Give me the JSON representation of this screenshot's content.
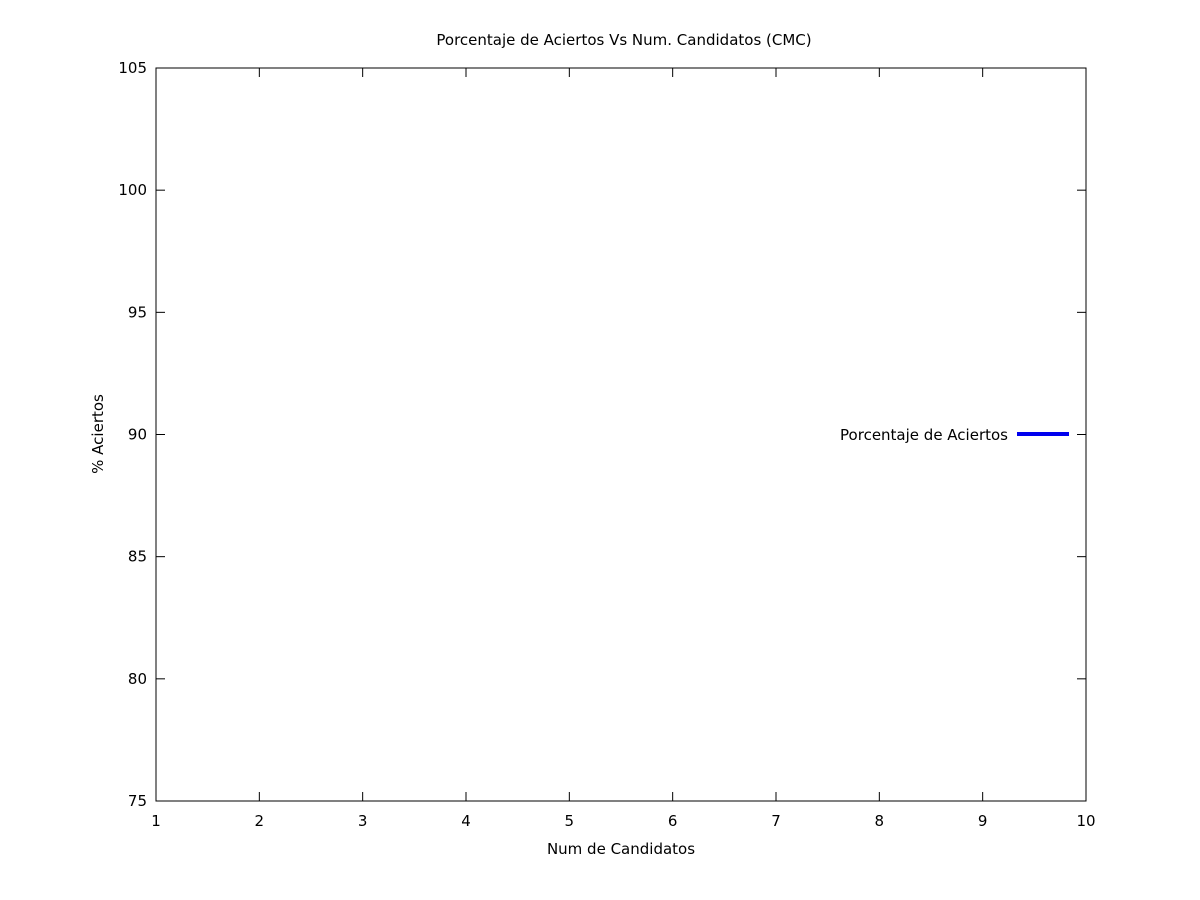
{
  "chart_data": {
    "type": "line",
    "title": "Porcentaje de Aciertos Vs Num. Candidatos (CMC)",
    "xlabel": "Num de Candidatos",
    "ylabel": "% Aciertos",
    "xlim": [
      1,
      10
    ],
    "ylim": [
      75,
      105
    ],
    "x_ticks": [
      1,
      2,
      3,
      4,
      5,
      6,
      7,
      8,
      9,
      10
    ],
    "y_ticks": [
      75,
      80,
      85,
      90,
      95,
      100,
      105
    ],
    "grid": false,
    "legend_position": "right",
    "series": [
      {
        "name": "Porcentaje de Aciertos",
        "color": "#0000ee",
        "x": [],
        "y": []
      }
    ]
  }
}
